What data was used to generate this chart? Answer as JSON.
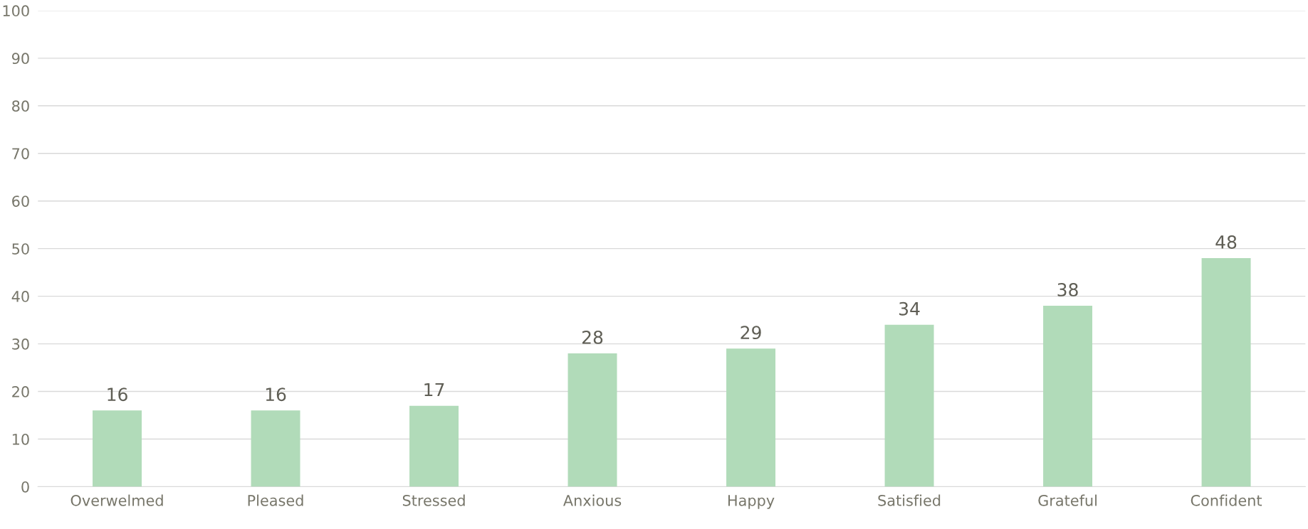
{
  "chart_data": {
    "type": "bar",
    "categories": [
      "Overwelmed",
      "Pleased",
      "Stressed",
      "Anxious",
      "Happy",
      "Satisfied",
      "Grateful",
      "Confident"
    ],
    "values": [
      16,
      16,
      17,
      28,
      29,
      34,
      38,
      48
    ],
    "color": "#b1dbb9",
    "ylim": [
      0,
      100
    ],
    "yticks": [
      0,
      10,
      20,
      30,
      40,
      50,
      60,
      70,
      80,
      90,
      100
    ],
    "grid": "y",
    "data_labels": true
  }
}
